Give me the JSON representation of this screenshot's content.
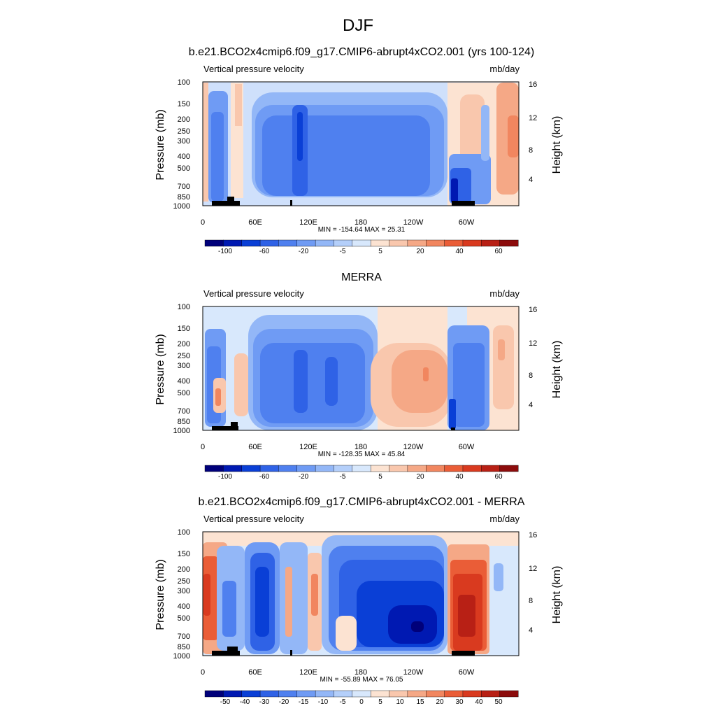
{
  "figure": {
    "title": "DJF"
  },
  "panels": [
    {
      "title": "b.e21.BCO2x4cmip6.f09_g17.CMIP6-abrupt4xCO2.001 (yrs 100-124)",
      "variable": "Vertical pressure velocity",
      "units": "mb/day",
      "stats": "MIN = -154.64  MAX =  25.31",
      "colorbar_labels": [
        "-100",
        "-60",
        "-20",
        "-5",
        "5",
        "20",
        "40",
        "60"
      ]
    },
    {
      "title": "MERRA",
      "variable": "Vertical pressure velocity",
      "units": "mb/day",
      "stats": "MIN = -128.35  MAX =  45.84",
      "colorbar_labels": [
        "-100",
        "-60",
        "-20",
        "-5",
        "5",
        "20",
        "40",
        "60"
      ]
    },
    {
      "title": "b.e21.BCO2x4cmip6.f09_g17.CMIP6-abrupt4xCO2.001 - MERRA",
      "variable": "Vertical pressure velocity",
      "units": "mb/day",
      "stats": "MIN = -55.89  MAX =  76.05",
      "colorbar_labels": [
        "-50",
        "-40",
        "-30",
        "-20",
        "-15",
        "-10",
        "-5",
        "0",
        "5",
        "10",
        "15",
        "20",
        "30",
        "40",
        "50"
      ]
    }
  ],
  "axes": {
    "ylabel_left": "Pressure (mb)",
    "ylabel_right": "Height (km)",
    "pressure_ticks": [
      "100",
      "150",
      "200",
      "250",
      "300",
      "400",
      "500",
      "700",
      "850",
      "1000"
    ],
    "height_ticks": [
      "16",
      "12",
      "8",
      "4"
    ],
    "lon_ticks": [
      "0",
      "60E",
      "120E",
      "180",
      "120W",
      "60W"
    ]
  },
  "chart_data": [
    {
      "type": "heatmap",
      "title": "b.e21.BCO2x4cmip6.f09_g17.CMIP6-abrupt4xCO2.001 (yrs 100-124)",
      "xlabel": "",
      "ylabel": "Pressure (mb)",
      "ylabel_right": "Height (km)",
      "xlim": [
        0,
        360
      ],
      "ylim": [
        1000,
        100
      ],
      "y_scale": "log",
      "colorbar_levels": [
        -120,
        -100,
        -80,
        -60,
        -40,
        -20,
        -10,
        -5,
        0,
        5,
        10,
        20,
        30,
        40,
        50,
        60,
        70
      ],
      "colors": [
        "#00007a",
        "#0019b2",
        "#0a3fd6",
        "#2f62e6",
        "#4f80ef",
        "#6f9bf4",
        "#93b7f7",
        "#b4cffa",
        "#d8e8fc",
        "#fce3d2",
        "#f9c7ad",
        "#f5a886",
        "#f1865f",
        "#ea5d37",
        "#d93a1f",
        "#b82015",
        "#8c0c0c"
      ],
      "min": -154.64,
      "max": 25.31
    },
    {
      "type": "heatmap",
      "title": "MERRA",
      "xlabel": "",
      "ylabel": "Pressure (mb)",
      "ylabel_right": "Height (km)",
      "xlim": [
        0,
        360
      ],
      "ylim": [
        1000,
        100
      ],
      "y_scale": "log",
      "colorbar_levels": [
        -120,
        -100,
        -80,
        -60,
        -40,
        -20,
        -10,
        -5,
        0,
        5,
        10,
        20,
        30,
        40,
        50,
        60,
        70
      ],
      "min": -128.35,
      "max": 45.84
    },
    {
      "type": "heatmap",
      "title": "b.e21.BCO2x4cmip6.f09_g17.CMIP6-abrupt4xCO2.001 - MERRA",
      "xlabel": "",
      "ylabel": "Pressure (mb)",
      "ylabel_right": "Height (km)",
      "xlim": [
        0,
        360
      ],
      "ylim": [
        1000,
        100
      ],
      "y_scale": "log",
      "colorbar_levels": [
        -55,
        -50,
        -40,
        -30,
        -20,
        -15,
        -10,
        -5,
        0,
        5,
        10,
        15,
        20,
        30,
        40,
        50,
        55
      ],
      "min": -55.89,
      "max": 76.05
    }
  ]
}
